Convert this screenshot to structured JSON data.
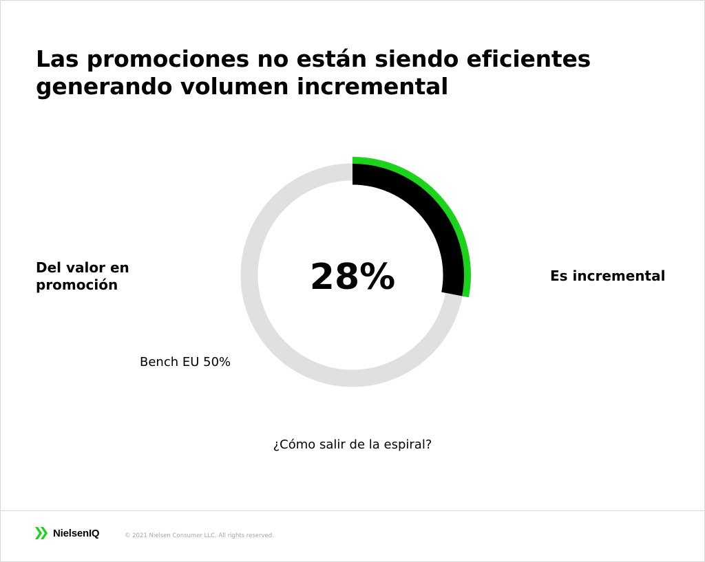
{
  "title": {
    "line1": "Las promociones no están siendo eficientes",
    "line2": "generando volumen incremental"
  },
  "left_label": {
    "line1": "Del valor en",
    "line2": "promoción"
  },
  "right_label": "Es incremental",
  "bench_label": "Bench EU 50%",
  "question": "¿Cómo salir de la espiral?",
  "footer": {
    "logo_text": "NielsenIQ",
    "logo_icon": "nielseniq-logo-icon",
    "copyright": "© 2021 Nielsen Consumer LLC. All rights reserved."
  },
  "colors": {
    "accent": "#1ad31a",
    "value_arc": "#000000",
    "track": "#e0e0e0"
  },
  "chart_data": {
    "type": "pie",
    "center_label": "28%",
    "value": 28,
    "max": 100,
    "benchmark": {
      "label": "Bench EU 50%",
      "value": 50
    },
    "annotations": [
      "Del valor en promoción",
      "Es incremental",
      "Bench EU 50%"
    ]
  }
}
